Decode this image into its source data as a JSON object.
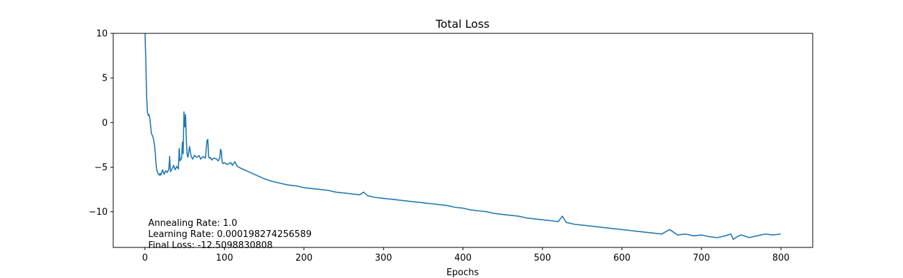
{
  "chart_data": {
    "type": "line",
    "title": "Total Loss",
    "xlabel": "Epochs",
    "ylabel": "",
    "xlim": [
      -40,
      840
    ],
    "ylim": [
      -14,
      10
    ],
    "xticks": [
      0,
      100,
      200,
      300,
      400,
      500,
      600,
      700,
      800
    ],
    "xtick_labels": [
      "0",
      "100",
      "200",
      "300",
      "400",
      "500",
      "600",
      "700",
      "800"
    ],
    "yticks": [
      10,
      5,
      0,
      -5,
      -10
    ],
    "ytick_labels": [
      "10",
      "5",
      "0",
      "−5",
      "−10"
    ],
    "grid": false,
    "line_color": "#1f77b4",
    "annotations": [
      "Annealing Rate: 1.0",
      "Learning Rate: 0.000198274256589",
      "Final Loss: -12.5098830808"
    ],
    "series": [
      {
        "x": [
          0,
          1,
          2,
          3,
          4,
          5,
          6,
          7,
          8,
          9,
          10,
          11,
          12,
          13,
          14,
          15,
          16,
          17,
          18,
          19,
          20,
          22,
          24,
          26,
          28,
          30,
          31,
          32,
          34,
          36,
          38,
          40,
          42,
          43,
          44,
          46,
          47,
          48,
          49,
          50,
          51,
          52,
          53,
          54,
          56,
          58,
          60,
          62,
          65,
          68,
          70,
          73,
          76,
          78,
          79,
          80,
          81,
          82,
          84,
          86,
          88,
          90,
          92,
          94,
          95,
          96,
          97,
          98,
          100,
          103,
          106,
          108,
          110,
          113,
          116,
          120,
          125,
          130,
          140,
          150,
          160,
          170,
          180,
          190,
          200,
          210,
          220,
          230,
          240,
          250,
          260,
          270,
          275,
          280,
          290,
          300,
          310,
          320,
          330,
          340,
          350,
          360,
          370,
          380,
          390,
          400,
          410,
          420,
          430,
          440,
          450,
          460,
          470,
          480,
          490,
          500,
          510,
          520,
          525,
          530,
          540,
          550,
          560,
          570,
          580,
          590,
          600,
          610,
          620,
          630,
          640,
          650,
          660,
          670,
          680,
          690,
          700,
          710,
          720,
          730,
          737,
          740,
          745,
          750,
          760,
          770,
          780,
          790,
          800
        ],
        "y": [
          10,
          7,
          3,
          1.2,
          0.8,
          0.9,
          0.5,
          -0.3,
          -1.2,
          -1.4,
          -1.6,
          -2.0,
          -2.6,
          -3.5,
          -4.8,
          -5.4,
          -5.6,
          -5.8,
          -5.9,
          -5.7,
          -5.9,
          -5.3,
          -5.8,
          -5.4,
          -5.6,
          -5.2,
          -3.8,
          -5.5,
          -5.2,
          -4.8,
          -5.3,
          -4.9,
          -5.2,
          -2.9,
          -4.3,
          -4.0,
          -2.2,
          -3.5,
          1.2,
          -0.5,
          0.9,
          -2.0,
          -3.6,
          -3.9,
          -2.7,
          -3.8,
          -4.1,
          -3.7,
          -3.9,
          -3.7,
          -4.1,
          -3.8,
          -4.0,
          -2.0,
          -1.9,
          -3.8,
          -4.0,
          -3.9,
          -4.2,
          -4.0,
          -4.0,
          -4.1,
          -4.3,
          -4.0,
          -3.0,
          -3.2,
          -4.4,
          -4.6,
          -4.5,
          -4.7,
          -4.6,
          -4.5,
          -4.8,
          -4.4,
          -4.9,
          -5.1,
          -5.3,
          -5.5,
          -5.9,
          -6.3,
          -6.6,
          -6.8,
          -7.0,
          -7.1,
          -7.3,
          -7.4,
          -7.5,
          -7.6,
          -7.8,
          -7.9,
          -8.0,
          -8.1,
          -7.8,
          -8.2,
          -8.4,
          -8.5,
          -8.6,
          -8.7,
          -8.8,
          -8.9,
          -9.0,
          -9.1,
          -9.2,
          -9.3,
          -9.5,
          -9.6,
          -9.8,
          -9.9,
          -10.0,
          -10.2,
          -10.3,
          -10.4,
          -10.5,
          -10.7,
          -10.8,
          -10.9,
          -11.0,
          -11.1,
          -10.5,
          -11.2,
          -11.4,
          -11.5,
          -11.6,
          -11.7,
          -11.8,
          -11.9,
          -12.0,
          -12.1,
          -12.2,
          -12.3,
          -12.4,
          -12.5,
          -12.0,
          -12.6,
          -12.5,
          -12.7,
          -12.6,
          -12.8,
          -12.9,
          -12.7,
          -12.5,
          -13.1,
          -12.8,
          -12.6,
          -12.9,
          -12.7,
          -12.5,
          -12.6,
          -12.5
        ]
      }
    ]
  }
}
